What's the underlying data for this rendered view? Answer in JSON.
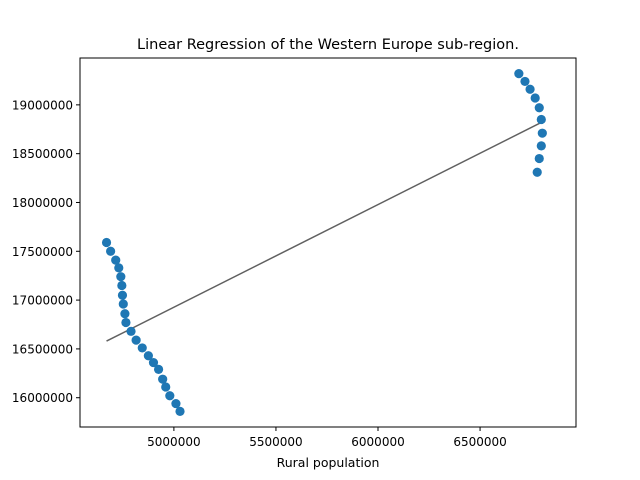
{
  "chart_data": {
    "type": "scatter",
    "title": "Linear Regression of the Western Europe sub-region.",
    "xlabel": "Rural population",
    "ylabel": "",
    "xlim": [
      4540000,
      6970000
    ],
    "ylim": [
      15700000,
      19480000
    ],
    "xticks": [
      5000000,
      5500000,
      6000000,
      6500000
    ],
    "xtick_labels": [
      "5000000",
      "5500000",
      "6000000",
      "6500000"
    ],
    "yticks": [
      16000000,
      16500000,
      17000000,
      17500000,
      18000000,
      18500000,
      19000000
    ],
    "ytick_labels": [
      "16000000",
      "16500000",
      "17000000",
      "17500000",
      "18000000",
      "18500000",
      "19000000"
    ],
    "grid": false,
    "legend": "none",
    "colors": {
      "points": "#1f77b4",
      "fit_line": "#606060",
      "axes": "#000000"
    },
    "series": [
      {
        "kind": "points",
        "x": [
          4670000,
          4690000,
          4715000,
          4730000,
          4740000,
          4745000,
          4748000,
          4752000,
          4760000,
          4765000,
          4790000,
          4815000,
          4845000,
          4875000,
          4900000,
          4925000,
          4945000,
          4960000,
          4980000,
          5010000,
          5030000,
          6690000,
          6720000,
          6745000,
          6770000,
          6790000,
          6800000,
          6805000,
          6800000,
          6790000,
          6780000
        ],
        "y": [
          17590000,
          17500000,
          17410000,
          17330000,
          17240000,
          17150000,
          17050000,
          16960000,
          16860000,
          16770000,
          16680000,
          16590000,
          16510000,
          16430000,
          16360000,
          16290000,
          16190000,
          16110000,
          16020000,
          15940000,
          15860000,
          19320000,
          19240000,
          19160000,
          19070000,
          18970000,
          18850000,
          18710000,
          18580000,
          18450000,
          18310000
        ]
      },
      {
        "kind": "fit_line",
        "x": [
          4670000,
          6800000
        ],
        "y": [
          16580000,
          18820000
        ]
      }
    ]
  }
}
